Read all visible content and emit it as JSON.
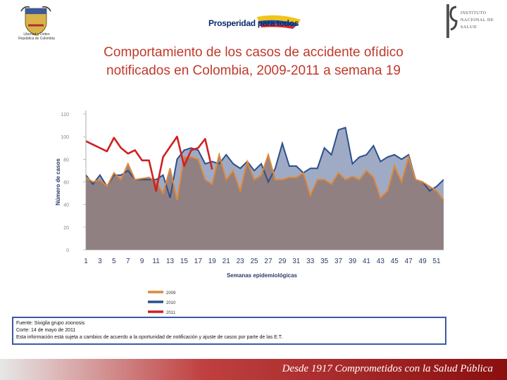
{
  "header": {
    "crest_line1": "Libertad y Orden",
    "crest_line2": "República de Colombia",
    "center_logo": "Prosperidad para todos",
    "institute_line1": "Instituto",
    "institute_line2": "Nacional de",
    "institute_line3": "Salud"
  },
  "title": {
    "line1": "Comportamiento de los casos de accidente ofídico",
    "line2": "notificados en Colombia, 2009-2011 a semana 19"
  },
  "chart_data": {
    "type": "area",
    "title": "Comportamiento de los casos de accidente ofídico notificados en Colombia, 2009-2011 a semana 19",
    "xlabel": "Semanas epidemiológicas",
    "ylabel": "Número de casos",
    "ylim": [
      0,
      120
    ],
    "yticks": [
      "0",
      "20",
      "40",
      "60",
      "80",
      "100",
      "120"
    ],
    "xtick_labels": [
      "1",
      "3",
      "5",
      "7",
      "9",
      "11",
      "13",
      "15",
      "17",
      "19",
      "21",
      "23",
      "25",
      "27",
      "29",
      "31",
      "33",
      "35",
      "37",
      "39",
      "41",
      "43",
      "45",
      "47",
      "49",
      "51"
    ],
    "weeks": [
      1,
      2,
      3,
      4,
      5,
      6,
      7,
      8,
      9,
      10,
      11,
      12,
      13,
      14,
      15,
      16,
      17,
      18,
      19,
      20,
      21,
      22,
      23,
      24,
      25,
      26,
      27,
      28,
      29,
      30,
      31,
      32,
      33,
      34,
      35,
      36,
      37,
      38,
      39,
      40,
      41,
      42,
      43,
      44,
      45,
      46,
      47,
      48,
      49,
      50,
      51,
      52
    ],
    "series": [
      {
        "name": "2009",
        "color": "#e0883a",
        "values": [
          64,
          60,
          62,
          56,
          68,
          62,
          76,
          62,
          63,
          64,
          60,
          50,
          72,
          44,
          82,
          82,
          80,
          62,
          58,
          84,
          62,
          70,
          52,
          78,
          62,
          66,
          84,
          62,
          62,
          64,
          64,
          68,
          48,
          62,
          62,
          58,
          68,
          62,
          65,
          62,
          70,
          64,
          46,
          52,
          74,
          60,
          82,
          62,
          60,
          56,
          52,
          44
        ]
      },
      {
        "name": "2010",
        "color": "#2c4f8c",
        "values": [
          66,
          58,
          66,
          56,
          66,
          66,
          70,
          62,
          62,
          62,
          62,
          66,
          46,
          80,
          88,
          90,
          88,
          76,
          78,
          76,
          84,
          76,
          72,
          78,
          70,
          76,
          60,
          72,
          94,
          74,
          74,
          68,
          72,
          72,
          90,
          84,
          106,
          108,
          76,
          82,
          84,
          92,
          78,
          82,
          84,
          80,
          84,
          62,
          60,
          52,
          56,
          62
        ]
      },
      {
        "name": "2011",
        "color": "#d02020",
        "values": [
          96,
          93,
          90,
          87,
          99,
          90,
          85,
          88,
          79,
          79,
          52,
          82,
          91,
          100,
          74,
          88,
          90,
          98,
          71
        ]
      }
    ],
    "legend": [
      "2009",
      "2010",
      "2011"
    ],
    "legend_position": "bottom-center",
    "grid": false
  },
  "note": {
    "line1": "Fuente: Sivigila grupo zoonosis",
    "line2": "Corte: 14 de mayo de 2011",
    "line3": "Esta información está sujeta a cambios de acuerdo a la oportunidad de notificación y ajuste de casos por parte de las E.T."
  },
  "footer": {
    "text": "Desde 1917 Comprometidos con la Salud Pública"
  },
  "colors": {
    "title": "#c0392b",
    "area_fill": "#8e7c7c",
    "series_2009": "#e0883a",
    "series_2010": "#2c4f8c",
    "series_2011": "#d02020"
  }
}
